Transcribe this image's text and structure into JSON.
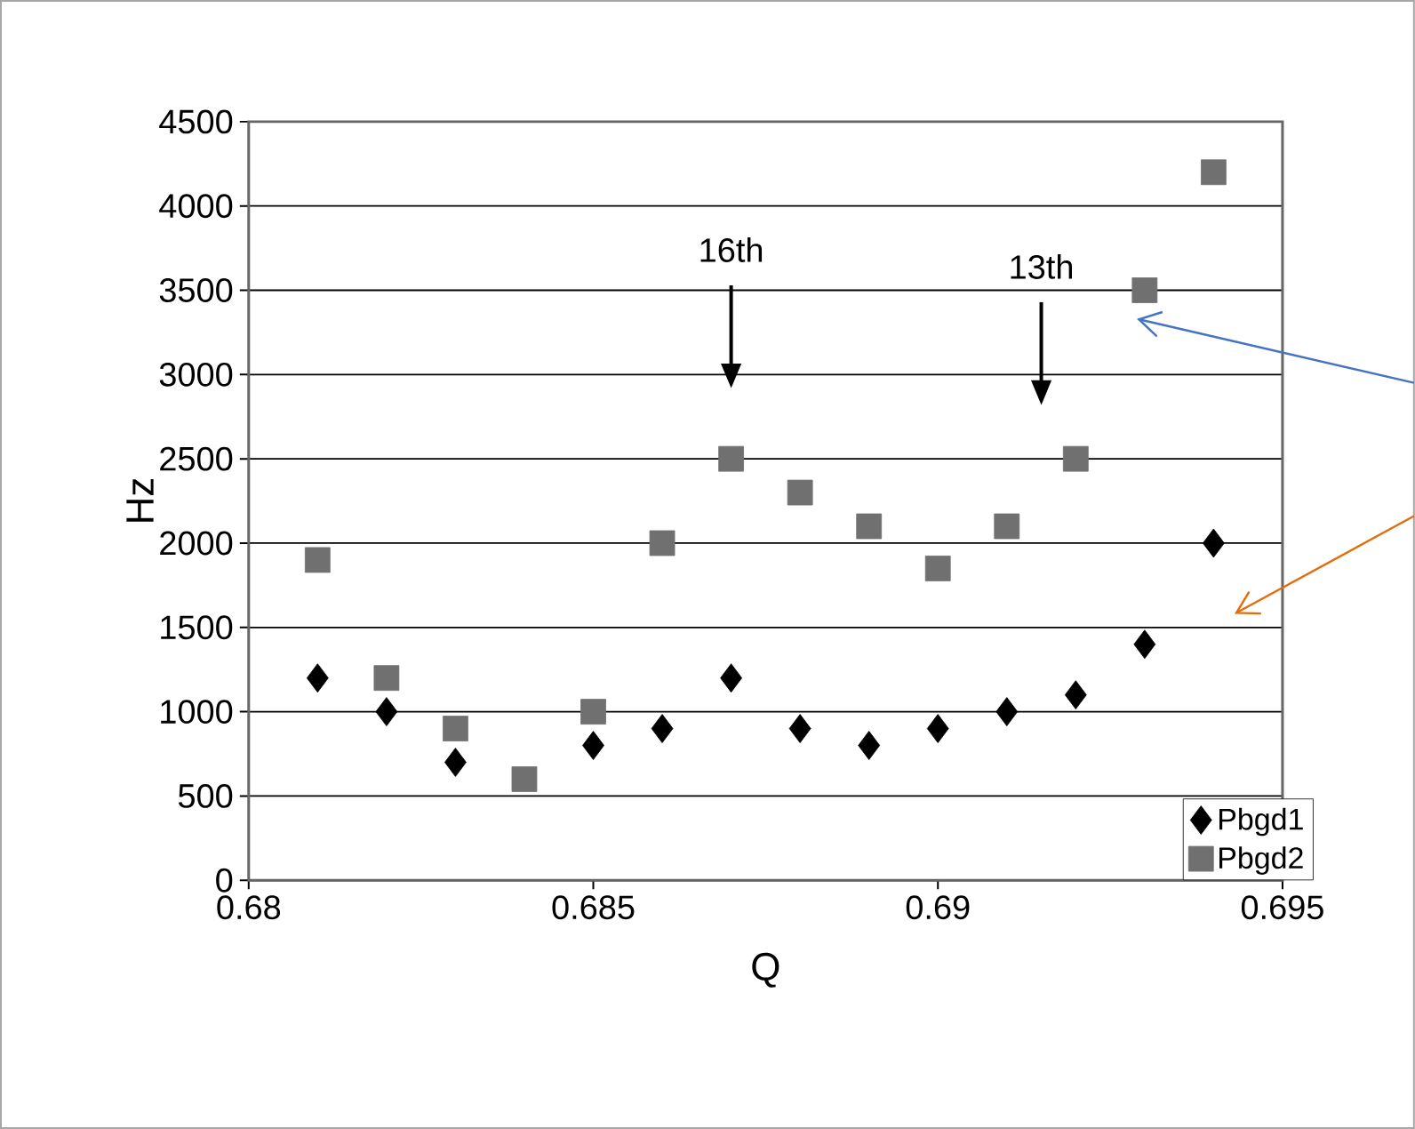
{
  "chart_data": {
    "type": "scatter",
    "xlabel": "Q",
    "ylabel": "Hz",
    "xlim": [
      0.68,
      0.695
    ],
    "xticks": [
      0.68,
      0.685,
      0.69,
      0.695
    ],
    "ylim": [
      0,
      4500
    ],
    "yticks": [
      0,
      500,
      1000,
      1500,
      2000,
      2500,
      3000,
      3500,
      4000,
      4500
    ],
    "grid": "y",
    "legend": "bottom right",
    "x": [
      0.681,
      0.682,
      0.683,
      0.684,
      0.685,
      0.686,
      0.687,
      0.688,
      0.689,
      0.69,
      0.691,
      0.692,
      0.693,
      0.694
    ],
    "series": [
      {
        "name": "Pbgd1",
        "color": "#000000",
        "marker": "diamond",
        "values": [
          1200,
          1000,
          700,
          null,
          800,
          900,
          1200,
          900,
          800,
          900,
          1000,
          1100,
          1400,
          2000
        ]
      },
      {
        "name": "Pbgd2",
        "color": "#707070",
        "marker": "square",
        "values": [
          1900,
          1200,
          900,
          600,
          1000,
          2000,
          2500,
          2300,
          2100,
          1850,
          2100,
          2500,
          3500,
          4200
        ]
      }
    ],
    "annotations": [
      {
        "text": "16th",
        "x": 0.687,
        "y": 3740
      },
      {
        "text": "13th",
        "x": 0.6915,
        "y": 3640
      }
    ]
  }
}
